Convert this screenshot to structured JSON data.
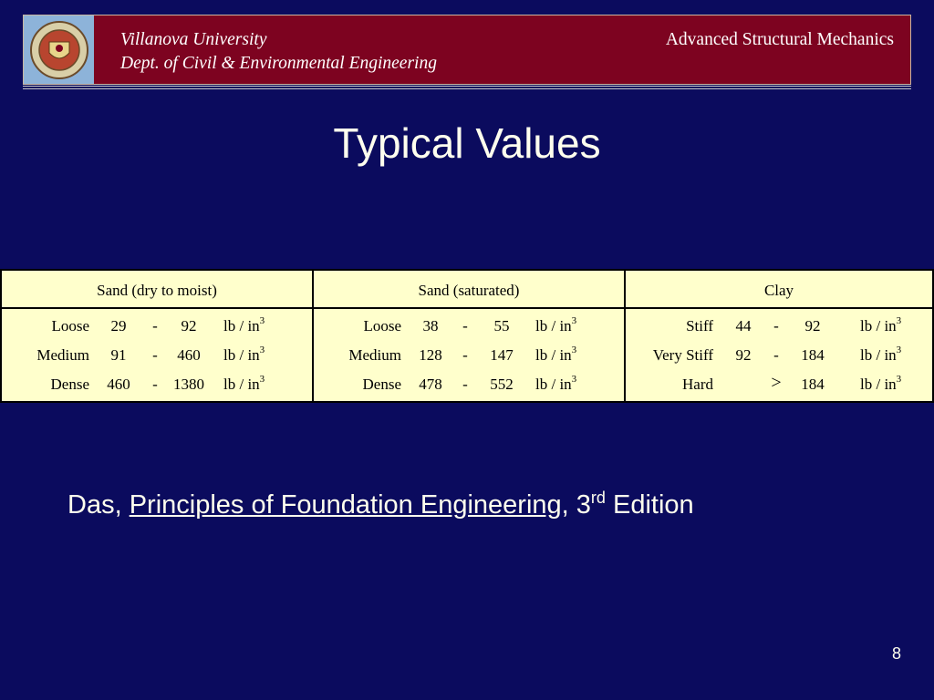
{
  "header": {
    "university": "Villanova University",
    "department": "Dept. of Civil & Environmental Engineering",
    "course": "Advanced Structural Mechanics"
  },
  "slide": {
    "title": "Typical Values",
    "page_number": "8"
  },
  "table": {
    "columns": [
      {
        "header": "Sand (dry to moist)",
        "rows": [
          {
            "label": "Loose",
            "low": "29",
            "sep": "-",
            "high": "92",
            "unit": "lb / in",
            "exp": "3"
          },
          {
            "label": "Medium",
            "low": "91",
            "sep": "-",
            "high": "460",
            "unit": "lb / in",
            "exp": "3"
          },
          {
            "label": "Dense",
            "low": "460",
            "sep": "-",
            "high": "1380",
            "unit": "lb / in",
            "exp": "3"
          }
        ]
      },
      {
        "header": "Sand (saturated)",
        "rows": [
          {
            "label": "Loose",
            "low": "38",
            "sep": "-",
            "high": "55",
            "unit": "lb / in",
            "exp": "3"
          },
          {
            "label": "Medium",
            "low": "128",
            "sep": "-",
            "high": "147",
            "unit": "lb / in",
            "exp": "3"
          },
          {
            "label": "Dense",
            "low": "478",
            "sep": "-",
            "high": "552",
            "unit": "lb / in",
            "exp": "3"
          }
        ]
      },
      {
        "header": "Clay",
        "rows": [
          {
            "label": "Stiff",
            "low": "44",
            "sep": "-",
            "high": "92",
            "unit": "lb / in",
            "exp": "3"
          },
          {
            "label": "Very Stiff",
            "low": "92",
            "sep": "-",
            "high": "184",
            "unit": "lb / in",
            "exp": "3"
          },
          {
            "label": "Hard",
            "low": "",
            "sep": ">",
            "high": "184",
            "unit": "lb / in",
            "exp": "3"
          }
        ]
      }
    ]
  },
  "citation": {
    "author": "Das, ",
    "book": "Principles of Foundation Engineering",
    "comma": ", 3",
    "ordinal": "rd",
    "edition": " Edition"
  },
  "colors": {
    "background": "#0b0b5e",
    "header_bar": "#7d0320",
    "table_fill": "#ffffcc",
    "text": "#ffffee"
  }
}
